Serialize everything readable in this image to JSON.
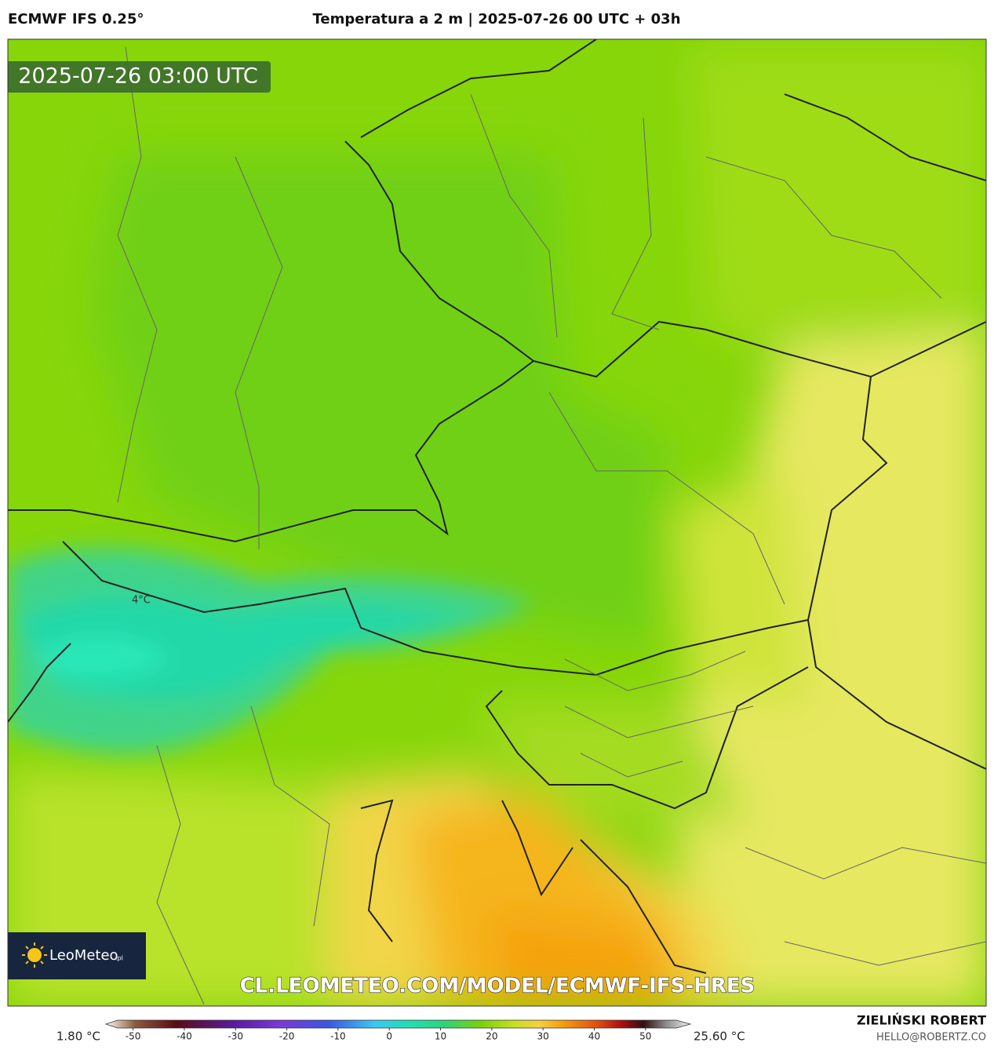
{
  "header": {
    "model": "ECMWF IFS 0.25°",
    "title": "Temperatura a 2 m | 2025-07-26 00 UTC + 03h"
  },
  "map": {
    "timestamp": "2025-07-26 03:00 UTC",
    "contour_label": "4°C",
    "watermark": "CL.LEOMETEO.COM/MODEL/ECMWF-IFS-HRES",
    "logo": {
      "name": "LeoMeteo",
      "suffix": ".pl"
    }
  },
  "colorbar": {
    "min_label": "1.80 °C",
    "max_label": "25.60 °C",
    "lim": [
      -53,
      56
    ],
    "ticks": [
      -50,
      -40,
      -30,
      -20,
      -10,
      0,
      10,
      20,
      30,
      40,
      50
    ]
  },
  "footer": {
    "author": "ZIELIŃSKI ROBERT",
    "email": "HELLO@ROBERTZ.CO"
  }
}
